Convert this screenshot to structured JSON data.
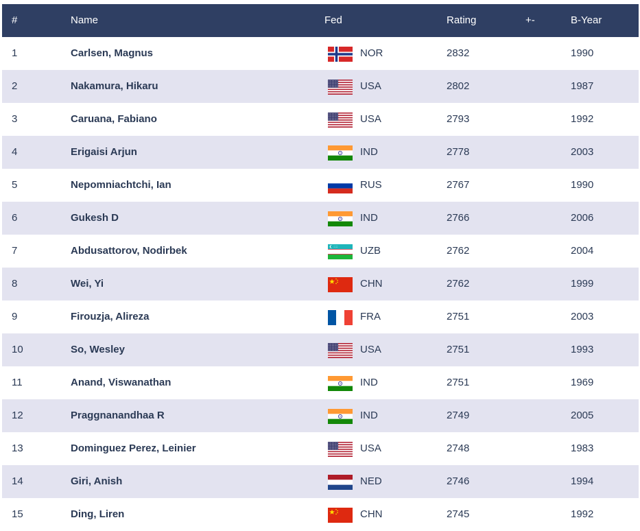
{
  "table": {
    "headers": {
      "rank": "#",
      "name": "Name",
      "fed": "Fed",
      "rating": "Rating",
      "delta": "+-",
      "byear": "B-Year"
    },
    "rows": [
      {
        "rank": "1",
        "name": "Carlsen, Magnus",
        "flag": "norway-flag-icon",
        "fed": "NOR",
        "rating": "2832",
        "delta": "",
        "byear": "1990"
      },
      {
        "rank": "2",
        "name": "Nakamura, Hikaru",
        "flag": "usa-flag-icon",
        "fed": "USA",
        "rating": "2802",
        "delta": "",
        "byear": "1987"
      },
      {
        "rank": "3",
        "name": "Caruana, Fabiano",
        "flag": "usa-flag-icon",
        "fed": "USA",
        "rating": "2793",
        "delta": "",
        "byear": "1992"
      },
      {
        "rank": "4",
        "name": "Erigaisi Arjun",
        "flag": "india-flag-icon",
        "fed": "IND",
        "rating": "2778",
        "delta": "",
        "byear": "2003"
      },
      {
        "rank": "5",
        "name": "Nepomniachtchi, Ian",
        "flag": "russia-flag-icon",
        "fed": "RUS",
        "rating": "2767",
        "delta": "",
        "byear": "1990"
      },
      {
        "rank": "6",
        "name": "Gukesh D",
        "flag": "india-flag-icon",
        "fed": "IND",
        "rating": "2766",
        "delta": "",
        "byear": "2006"
      },
      {
        "rank": "7",
        "name": "Abdusattorov, Nodirbek",
        "flag": "uzbekistan-flag-icon",
        "fed": "UZB",
        "rating": "2762",
        "delta": "",
        "byear": "2004"
      },
      {
        "rank": "8",
        "name": "Wei, Yi",
        "flag": "china-flag-icon",
        "fed": "CHN",
        "rating": "2762",
        "delta": "",
        "byear": "1999"
      },
      {
        "rank": "9",
        "name": "Firouzja, Alireza",
        "flag": "france-flag-icon",
        "fed": "FRA",
        "rating": "2751",
        "delta": "",
        "byear": "2003"
      },
      {
        "rank": "10",
        "name": "So, Wesley",
        "flag": "usa-flag-icon",
        "fed": "USA",
        "rating": "2751",
        "delta": "",
        "byear": "1993"
      },
      {
        "rank": "11",
        "name": "Anand, Viswanathan",
        "flag": "india-flag-icon",
        "fed": "IND",
        "rating": "2751",
        "delta": "",
        "byear": "1969"
      },
      {
        "rank": "12",
        "name": "Praggnanandhaa R",
        "flag": "india-flag-icon",
        "fed": "IND",
        "rating": "2749",
        "delta": "",
        "byear": "2005"
      },
      {
        "rank": "13",
        "name": "Dominguez Perez, Leinier",
        "flag": "usa-flag-icon",
        "fed": "USA",
        "rating": "2748",
        "delta": "",
        "byear": "1983"
      },
      {
        "rank": "14",
        "name": "Giri, Anish",
        "flag": "netherlands-flag-icon",
        "fed": "NED",
        "rating": "2746",
        "delta": "",
        "byear": "1994"
      },
      {
        "rank": "15",
        "name": "Ding, Liren",
        "flag": "china-flag-icon",
        "fed": "CHN",
        "rating": "2745",
        "delta": "",
        "byear": "1992"
      }
    ]
  },
  "colors": {
    "header_bg": "#2f3f63",
    "header_text": "#ffffff",
    "row_alt_bg": "#e3e3f0",
    "row_text": "#2b3a55"
  }
}
